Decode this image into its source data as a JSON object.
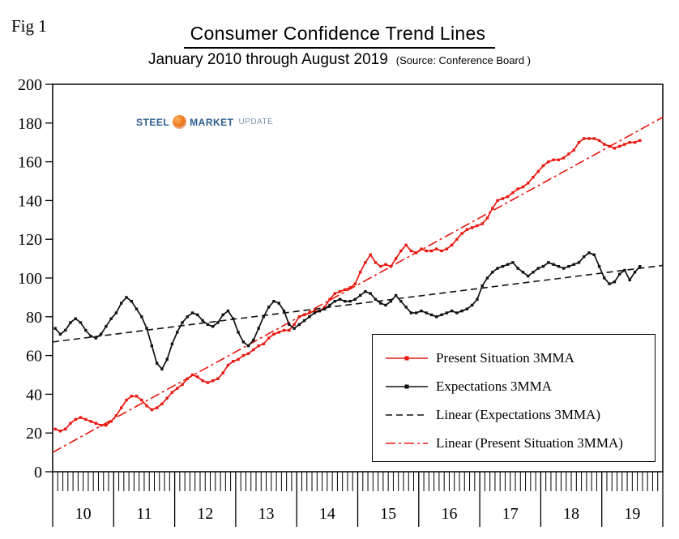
{
  "header": {
    "fig_label": "Fig 1",
    "title": "Consumer Confidence Trend Lines",
    "subtitle": "January 2010 through August 2019",
    "source": "(Source: Conference Board )"
  },
  "logo": {
    "steel": "STEEL",
    "market": "MARKET",
    "update": "UPDATE"
  },
  "colors": {
    "present": "#e81810",
    "expectations": "#111111"
  },
  "chart_data": {
    "type": "line",
    "title": "Consumer Confidence Trend Lines",
    "subtitle": "January 2010 through August 2019",
    "x_start": "2010-01",
    "x_end": "2019-08",
    "x_axis_months": 120,
    "x_year_labels": [
      "10",
      "11",
      "12",
      "13",
      "14",
      "15",
      "16",
      "17",
      "18",
      "19"
    ],
    "ylim": [
      0,
      200
    ],
    "ytick_step": 20,
    "grid": false,
    "legend_position": "inside lower right",
    "series": [
      {
        "name": "Present Situation 3MMA",
        "color": "#e81810",
        "marker": "square",
        "values": [
          22,
          21,
          22,
          25,
          27,
          28,
          27,
          26,
          25,
          24,
          24,
          26,
          29,
          33,
          37,
          39,
          39,
          37,
          34,
          32,
          33,
          35,
          38,
          41,
          43,
          45,
          48,
          50,
          49,
          47,
          46,
          47,
          48,
          51,
          55,
          57,
          58,
          60,
          61,
          63,
          65,
          66,
          69,
          71,
          72,
          73,
          73,
          76,
          80,
          81,
          82,
          83,
          83,
          85,
          89,
          92,
          93,
          94,
          95,
          97,
          103,
          108,
          112,
          108,
          106,
          107,
          106,
          110,
          114,
          117,
          114,
          113,
          115,
          114,
          114,
          115,
          114,
          115,
          117,
          120,
          123,
          125,
          126,
          127,
          128,
          131,
          136,
          140,
          141,
          142,
          144,
          146,
          147,
          149,
          152,
          155,
          158,
          160,
          161,
          161,
          162,
          164,
          166,
          170,
          172,
          172,
          172,
          171,
          169,
          168,
          167,
          168,
          169,
          170,
          170,
          171
        ]
      },
      {
        "name": "Expectations 3MMA",
        "color": "#111111",
        "marker": "square",
        "values": [
          74,
          71,
          73,
          77,
          79,
          77,
          73,
          70,
          69,
          71,
          75,
          79,
          82,
          87,
          90,
          88,
          84,
          80,
          74,
          65,
          56,
          53,
          58,
          66,
          72,
          77,
          80,
          82,
          81,
          78,
          76,
          75,
          77,
          81,
          83,
          79,
          72,
          67,
          65,
          68,
          74,
          80,
          85,
          88,
          87,
          83,
          76,
          74,
          76,
          78,
          80,
          82,
          83,
          84,
          86,
          88,
          89,
          88,
          88,
          89,
          91,
          93,
          92,
          89,
          87,
          86,
          88,
          91,
          88,
          85,
          82,
          82,
          83,
          82,
          81,
          80,
          81,
          82,
          83,
          82,
          83,
          84,
          86,
          89,
          96,
          100,
          103,
          105,
          106,
          107,
          108,
          105,
          103,
          101,
          103,
          105,
          106,
          108,
          107,
          106,
          105,
          106,
          107,
          108,
          111,
          113,
          112,
          106,
          100,
          97,
          98,
          102,
          104,
          99,
          103,
          106
        ]
      }
    ],
    "trend_lines": [
      {
        "name": "Linear (Expectations 3MMA)",
        "color": "#111111",
        "dash": "8,5",
        "start_value": 67,
        "end_value": 106.5
      },
      {
        "name": "Linear (Present Situation 3MMA)",
        "color": "#e81810",
        "dash": "12,4,3,4",
        "start_value": 10,
        "end_value": 183
      }
    ],
    "legend_items": [
      {
        "label": "Present Situation 3MMA",
        "color": "#e81810",
        "dash": "",
        "marker": true
      },
      {
        "label": "Expectations 3MMA",
        "color": "#111111",
        "dash": "",
        "marker": true
      },
      {
        "label": "Linear (Expectations 3MMA)",
        "color": "#111111",
        "dash": "8,5",
        "marker": false
      },
      {
        "label": "Linear (Present Situation 3MMA)",
        "color": "#e81810",
        "dash": "12,4,3,4",
        "marker": false
      }
    ]
  }
}
